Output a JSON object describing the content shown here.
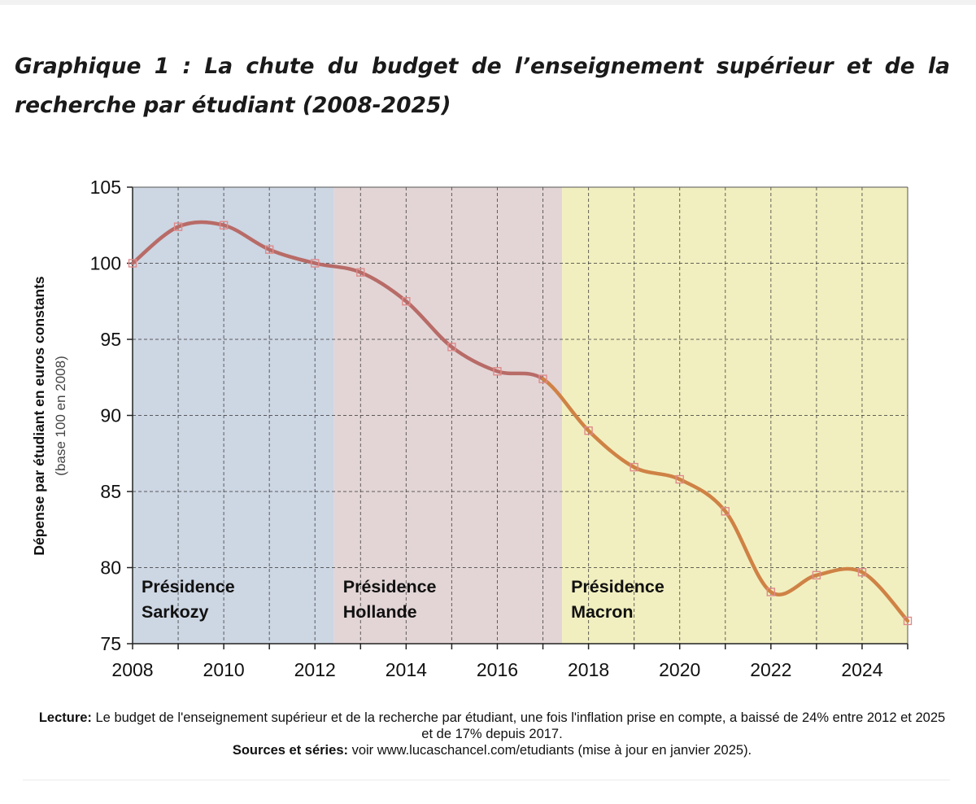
{
  "heading": {
    "text": "Graphique 1 : La chute du budget de l’enseignement supérieur et de la recherche par étudiant (2008-2025)"
  },
  "chart_data": {
    "type": "line",
    "ylabel_line1": "Dépense par étudiant en euros constants",
    "ylabel_line2": "(base 100 en 2008)",
    "xlim": [
      2008,
      2025
    ],
    "ylim": [
      75,
      105
    ],
    "x_ticks": [
      "2008",
      "2010",
      "2012",
      "2014",
      "2016",
      "2018",
      "2020",
      "2022",
      "2024"
    ],
    "y_ticks": [
      "105",
      "100",
      "95",
      "90",
      "85",
      "80",
      "75"
    ],
    "grid": true,
    "series": [
      {
        "x": [
          2008,
          2009,
          2010,
          2011,
          2012,
          2013,
          2014,
          2015,
          2016,
          2017,
          2018,
          2019,
          2020,
          2021,
          2022,
          2023,
          2024,
          2025
        ],
        "y": [
          100.0,
          102.4,
          102.5,
          100.9,
          100.0,
          99.4,
          97.5,
          94.5,
          92.9,
          92.4,
          89.0,
          86.6,
          85.8,
          83.7,
          78.4,
          79.5,
          79.7,
          76.5
        ]
      }
    ],
    "periods": [
      {
        "label_line1": "Présidence",
        "label_line2": "Sarkozy",
        "from": 2008,
        "to": 2012.42,
        "color": "#cdd6e3"
      },
      {
        "label_line1": "Présidence",
        "label_line2": "Hollande",
        "from": 2012.42,
        "to": 2017.42,
        "color": "#e3d5d6"
      },
      {
        "label_line1": "Présidence",
        "label_line2": "Macron",
        "from": 2017.42,
        "to": 2025,
        "color": "#f1efbf"
      }
    ],
    "line_colors": {
      "early": "#b86b67",
      "late": "#cf8245"
    },
    "marker_color": "#e08a8a"
  },
  "caption": {
    "lecture_label": "Lecture:",
    "lecture_text": " Le budget de l'enseignement supérieur et de la recherche par étudiant, une fois l'inflation prise en compte, a baissé de 24% entre 2012 et 2025 et de 17% depuis 2017.",
    "sources_label": "Sources et séries:",
    "sources_text": " voir www.lucaschancel.com/etudiants (mise à jour en janvier 2025)."
  }
}
